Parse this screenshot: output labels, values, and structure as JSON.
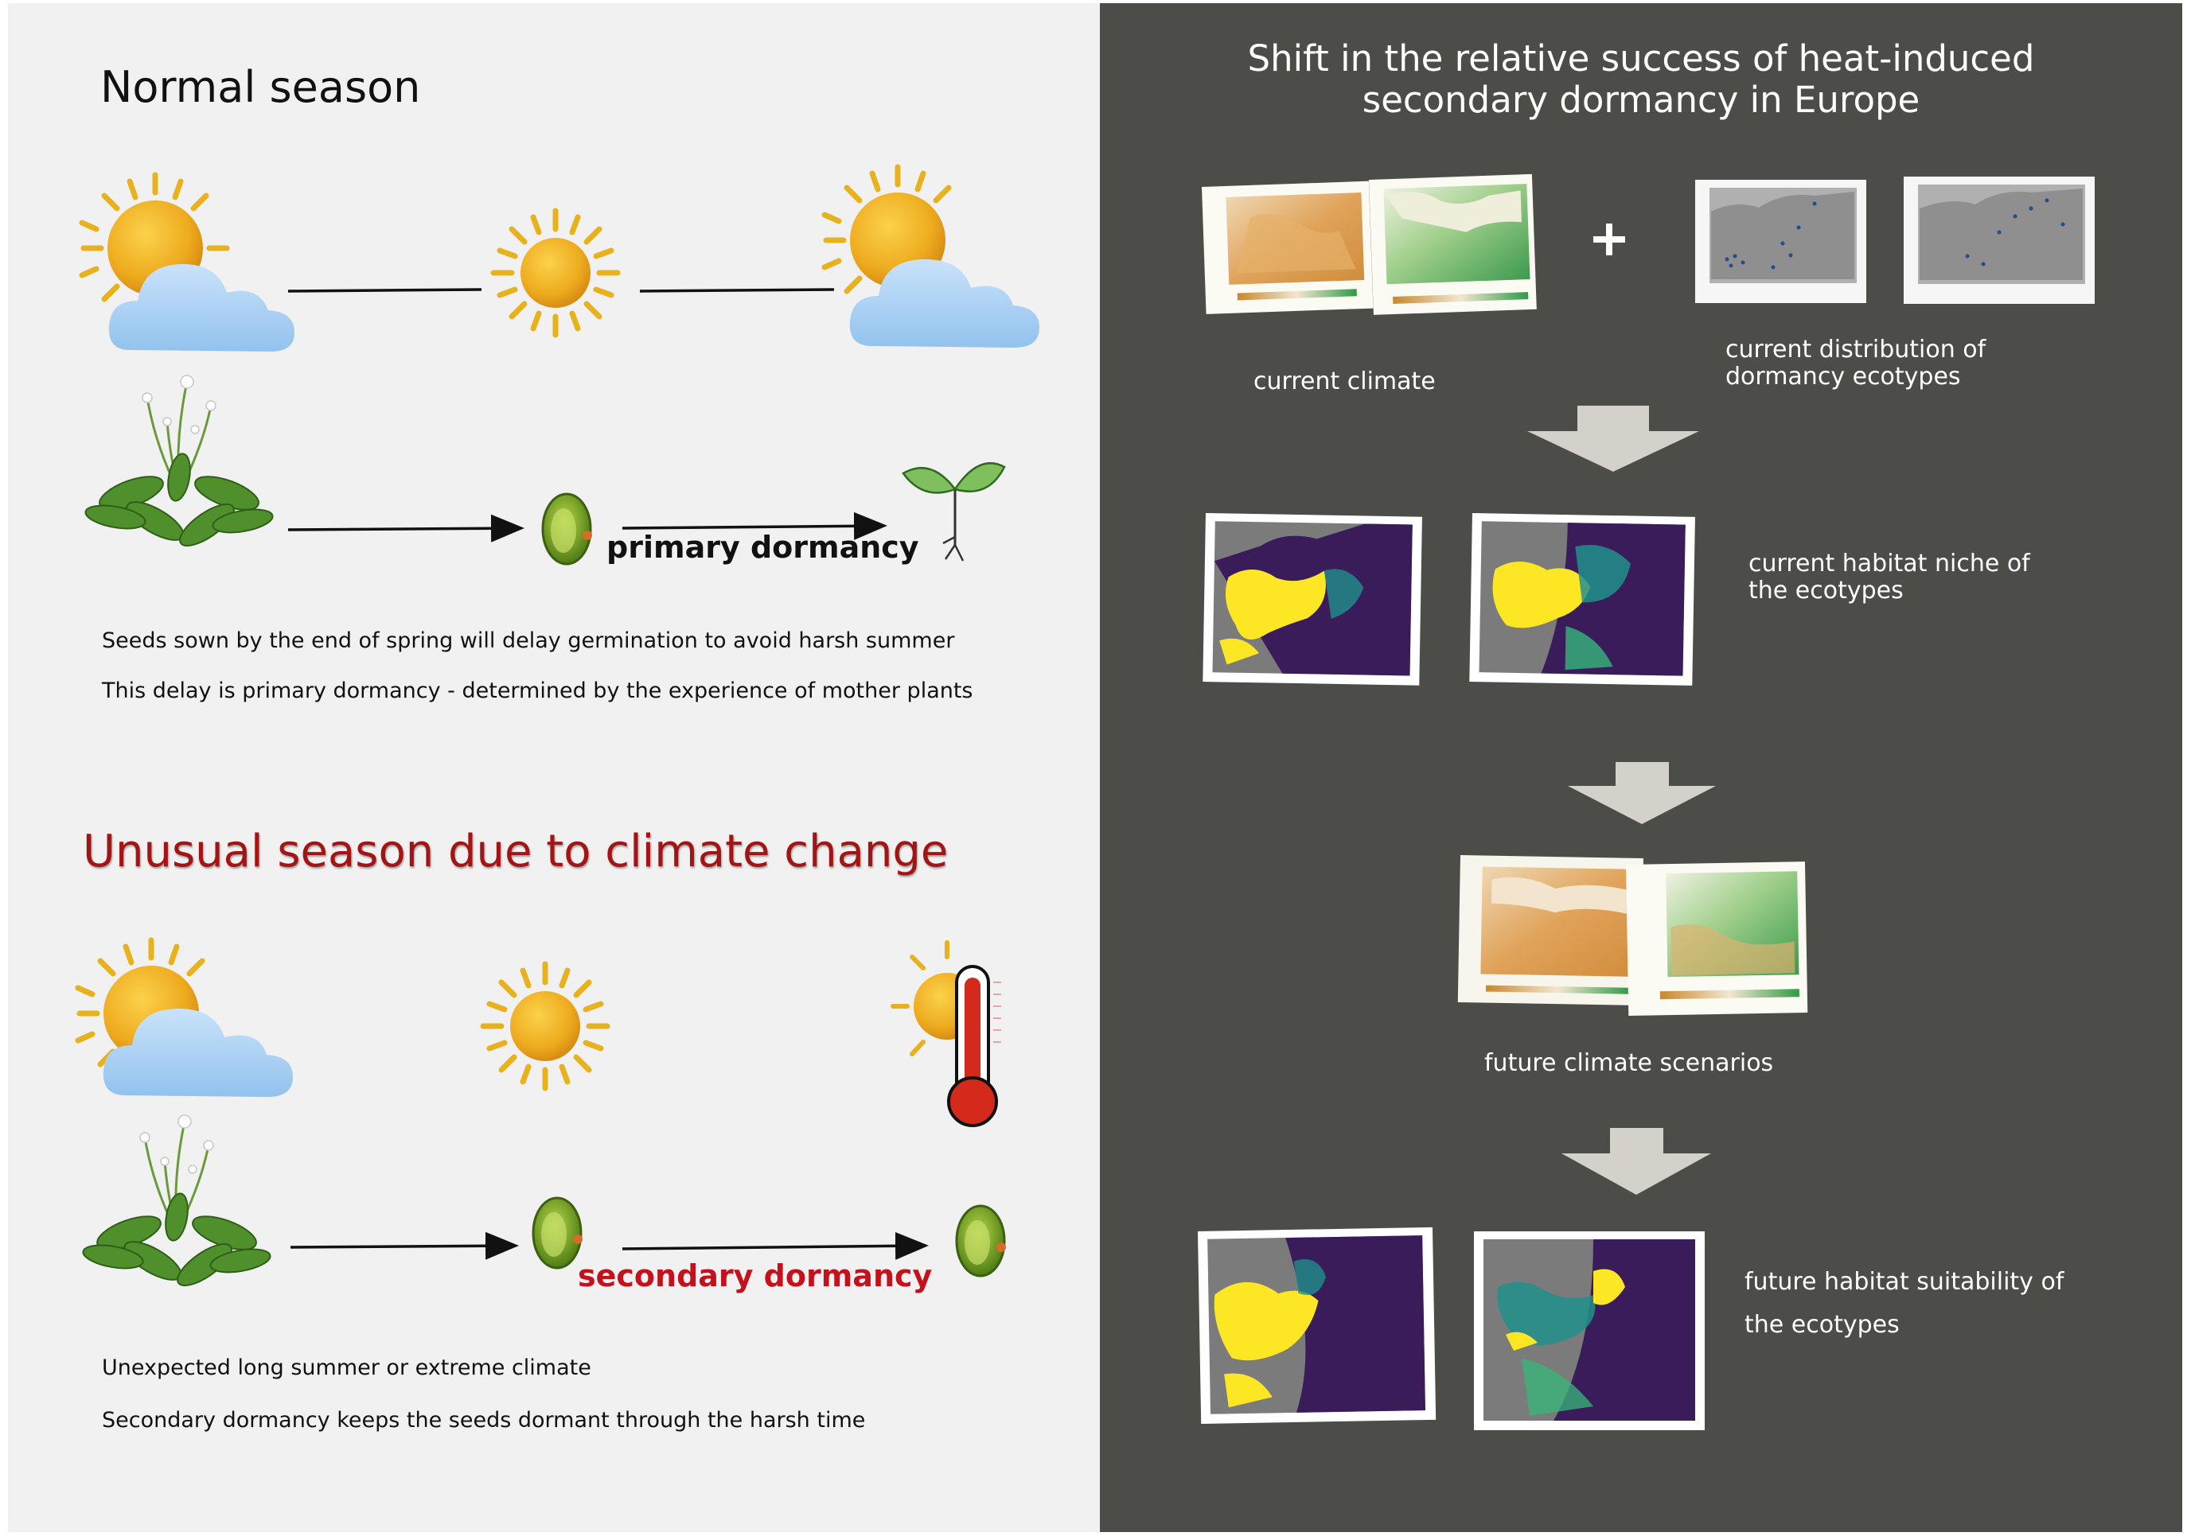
{
  "left": {
    "normal_title": "Normal season",
    "normal_primary_label": "primary dormancy",
    "normal_desc_1": "Seeds sown by the end of spring will delay germination to avoid harsh summer",
    "normal_desc_2": "This delay is primary dormancy - determined by the experience of mother plants",
    "unusual_title": "Unusual season due to climate change",
    "unusual_secondary_label": "secondary dormancy",
    "unusual_desc_1": "Unexpected long summer or extreme climate",
    "unusual_desc_2": "Secondary dormancy keeps the seeds dormant through the harsh time"
  },
  "right": {
    "title_line_1": "Shift in the relative success of heat-induced",
    "title_line_2": "secondary dormancy in Europe",
    "plus": "+",
    "current_climate": "current climate",
    "current_distribution_1": "current distribution of",
    "current_distribution_2": "dormancy ecotypes",
    "habitat_niche_1": "current habitat niche of",
    "habitat_niche_2": "the ecotypes",
    "future_climate": "future climate scenarios",
    "future_suitability_1": "future habitat suitability of",
    "future_suitability_2": "the ecotypes"
  },
  "colors": {
    "left_bg": "#f1f1f1",
    "right_bg": "#4c4d49",
    "secondary_red": "#c4111b",
    "unusual_title_red": "#a31414",
    "arrow_grey": "#d4d1cb",
    "map_yellow": "#fde725",
    "map_purple": "#3b1c5a",
    "map_teal": "#21908c",
    "climate_orange": "#e2a55a",
    "climate_green": "#4aa555"
  },
  "icons": [
    "sun-icon",
    "cloud-icon",
    "plant-icon",
    "seed-icon",
    "seedling-icon",
    "thermometer-icon",
    "down-arrow-icon",
    "map-icon"
  ]
}
